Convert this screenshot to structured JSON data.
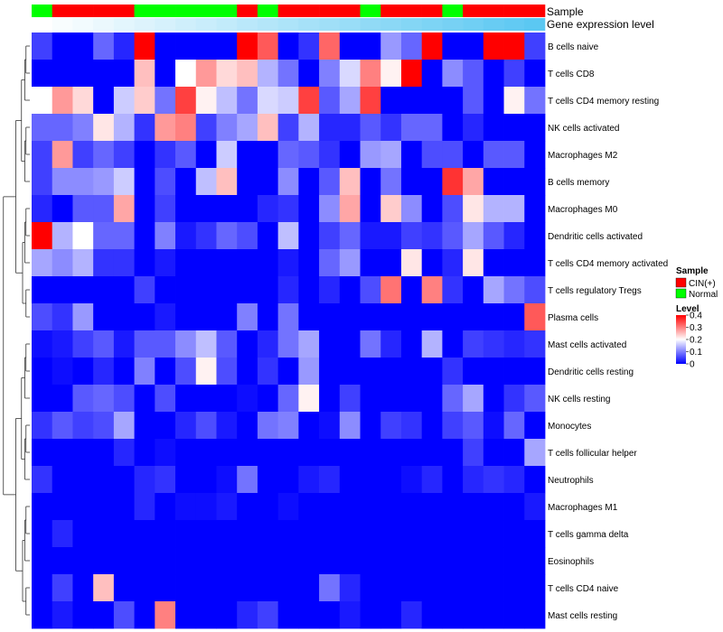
{
  "chart_data": {
    "type": "heatmap",
    "title": "",
    "annotation_tracks": [
      "Sample",
      "Gene expression level"
    ],
    "rows": [
      "B cells naive",
      "T cells CD8",
      "T cells CD4 memory resting",
      "NK cells activated",
      "Macrophages M2",
      "B cells memory",
      "Macrophages M0",
      "Dendritic cells activated",
      "T cells CD4 memory activated",
      "T cells regulatory  Tregs",
      "Plasma cells",
      "Mast cells activated",
      "Dendritic cells resting",
      "NK cells resting",
      "Monocytes",
      "T cells follicular helper",
      "Neutrophils",
      "Macrophages M1",
      "T cells gamma delta",
      "Eosinophils",
      "T cells CD4 naive",
      "Mast cells resting"
    ],
    "sample_groups": [
      "Normal",
      "CIN(+)",
      "CIN(+)",
      "CIN(+)",
      "CIN(+)",
      "Normal",
      "Normal",
      "Normal",
      "Normal",
      "Normal",
      "CIN(+)",
      "Normal",
      "CIN(+)",
      "CIN(+)",
      "CIN(+)",
      "CIN(+)",
      "Normal",
      "CIN(+)",
      "CIN(+)",
      "CIN(+)",
      "Normal",
      "CIN(+)",
      "CIN(+)",
      "CIN(+)",
      "CIN(+)"
    ],
    "gene_expression_level": [
      0.0,
      0.04,
      0.08,
      0.12,
      0.17,
      0.21,
      0.25,
      0.29,
      0.33,
      0.37,
      0.42,
      0.46,
      0.5,
      0.54,
      0.58,
      0.62,
      0.67,
      0.71,
      0.75,
      0.79,
      0.83,
      0.87,
      0.92,
      0.96,
      1.0
    ],
    "values": [
      [
        0.05,
        0.0,
        0.0,
        0.08,
        0.03,
        0.4,
        0.0,
        0.0,
        0.0,
        0.0,
        0.4,
        0.33,
        0.0,
        0.04,
        0.32,
        0.0,
        0.0,
        0.12,
        0.08,
        0.4,
        0.0,
        0.0,
        0.4,
        0.4,
        0.05
      ],
      [
        0.0,
        0.0,
        0.0,
        0.0,
        0.0,
        0.25,
        0.0,
        0.2,
        0.28,
        0.23,
        0.25,
        0.14,
        0.09,
        0.0,
        0.1,
        0.17,
        0.3,
        0.21,
        0.4,
        0.0,
        0.11,
        0.07,
        0.0,
        0.05,
        0.0
      ],
      [
        0.2,
        0.28,
        0.23,
        0.0,
        0.16,
        0.24,
        0.09,
        0.35,
        0.21,
        0.15,
        0.09,
        0.17,
        0.16,
        0.35,
        0.07,
        0.13,
        0.35,
        0.0,
        0.0,
        0.0,
        0.0,
        0.07,
        0.0,
        0.21,
        0.09
      ],
      [
        0.08,
        0.08,
        0.1,
        0.22,
        0.14,
        0.04,
        0.28,
        0.3,
        0.05,
        0.1,
        0.13,
        0.25,
        0.05,
        0.14,
        0.03,
        0.03,
        0.07,
        0.04,
        0.08,
        0.08,
        0.0,
        0.03,
        0.0,
        0.0,
        0.0
      ],
      [
        0.05,
        0.28,
        0.05,
        0.08,
        0.05,
        0.0,
        0.04,
        0.07,
        0.0,
        0.16,
        0.0,
        0.0,
        0.08,
        0.07,
        0.04,
        0.0,
        0.12,
        0.13,
        0.0,
        0.06,
        0.06,
        0.0,
        0.07,
        0.07,
        0.0
      ],
      [
        0.05,
        0.11,
        0.11,
        0.12,
        0.16,
        0.0,
        0.06,
        0.0,
        0.15,
        0.25,
        0.0,
        0.0,
        0.11,
        0.0,
        0.07,
        0.25,
        0.0,
        0.09,
        0.0,
        0.0,
        0.36,
        0.27,
        0.0,
        0.0,
        0.0
      ],
      [
        0.03,
        0.0,
        0.07,
        0.07,
        0.27,
        0.0,
        0.05,
        0.0,
        0.0,
        0.0,
        0.0,
        0.03,
        0.04,
        0.0,
        0.11,
        0.27,
        0.0,
        0.24,
        0.11,
        0.0,
        0.06,
        0.22,
        0.14,
        0.14,
        0.0
      ],
      [
        0.4,
        0.14,
        0.2,
        0.08,
        0.08,
        0.0,
        0.1,
        0.02,
        0.04,
        0.08,
        0.06,
        0.0,
        0.15,
        0.0,
        0.05,
        0.08,
        0.02,
        0.02,
        0.05,
        0.04,
        0.07,
        0.13,
        0.07,
        0.03,
        0.0
      ],
      [
        0.13,
        0.11,
        0.14,
        0.04,
        0.04,
        0.0,
        0.02,
        0.0,
        0.0,
        0.0,
        0.0,
        0.0,
        0.02,
        0.0,
        0.08,
        0.12,
        0.0,
        0.0,
        0.22,
        0.0,
        0.03,
        0.22,
        0.0,
        0.0,
        0.0
      ],
      [
        0.0,
        0.0,
        0.0,
        0.0,
        0.0,
        0.05,
        0.0,
        0.0,
        0.0,
        0.0,
        0.0,
        0.0,
        0.03,
        0.0,
        0.03,
        0.0,
        0.06,
        0.31,
        0.0,
        0.3,
        0.04,
        0.0,
        0.13,
        0.09,
        0.06
      ],
      [
        0.06,
        0.04,
        0.12,
        0.0,
        0.0,
        0.0,
        0.02,
        0.0,
        0.0,
        0.0,
        0.1,
        0.0,
        0.09,
        0.0,
        0.0,
        0.0,
        0.0,
        0.0,
        0.0,
        0.0,
        0.0,
        0.0,
        0.0,
        0.0,
        0.33
      ],
      [
        0.01,
        0.02,
        0.05,
        0.07,
        0.02,
        0.07,
        0.07,
        0.11,
        0.15,
        0.07,
        0.0,
        0.03,
        0.09,
        0.13,
        0.0,
        0.0,
        0.09,
        0.03,
        0.0,
        0.14,
        0.0,
        0.05,
        0.04,
        0.03,
        0.04
      ],
      [
        0.0,
        0.01,
        0.0,
        0.03,
        0.0,
        0.1,
        0.0,
        0.06,
        0.21,
        0.06,
        0.0,
        0.04,
        0.0,
        0.12,
        0.0,
        0.0,
        0.0,
        0.0,
        0.0,
        0.0,
        0.04,
        0.0,
        0.0,
        0.0,
        0.0
      ],
      [
        0.0,
        0.0,
        0.07,
        0.08,
        0.06,
        0.0,
        0.06,
        0.0,
        0.0,
        0.0,
        0.01,
        0.0,
        0.08,
        0.21,
        0.0,
        0.05,
        0.0,
        0.0,
        0.0,
        0.0,
        0.08,
        0.13,
        0.0,
        0.04,
        0.07
      ],
      [
        0.04,
        0.07,
        0.05,
        0.06,
        0.13,
        0.0,
        0.0,
        0.03,
        0.06,
        0.02,
        0.0,
        0.09,
        0.1,
        0.0,
        0.01,
        0.11,
        0.0,
        0.05,
        0.04,
        0.0,
        0.05,
        0.07,
        0.01,
        0.08,
        0.0
      ],
      [
        0.0,
        0.0,
        0.0,
        0.0,
        0.03,
        0.0,
        0.01,
        0.0,
        0.0,
        0.0,
        0.0,
        0.0,
        0.0,
        0.0,
        0.0,
        0.0,
        0.0,
        0.0,
        0.0,
        0.0,
        0.0,
        0.05,
        0.0,
        0.0,
        0.13
      ],
      [
        0.04,
        0.0,
        0.0,
        0.0,
        0.0,
        0.03,
        0.04,
        0.0,
        0.0,
        0.01,
        0.09,
        0.0,
        0.0,
        0.02,
        0.03,
        0.0,
        0.0,
        0.0,
        0.01,
        0.03,
        0.0,
        0.03,
        0.04,
        0.03,
        0.0
      ],
      [
        0.0,
        0.0,
        0.0,
        0.0,
        0.0,
        0.03,
        0.0,
        0.01,
        0.01,
        0.02,
        0.0,
        0.0,
        0.01,
        0.0,
        0.0,
        0.0,
        0.0,
        0.0,
        0.0,
        0.0,
        0.0,
        0.0,
        0.0,
        0.0,
        0.02
      ],
      [
        0.0,
        0.03,
        0.0,
        0.0,
        0.0,
        0.0,
        0.0,
        0.0,
        0.0,
        0.0,
        0.0,
        0.0,
        0.0,
        0.0,
        0.0,
        0.0,
        0.0,
        0.0,
        0.0,
        0.0,
        0.0,
        0.0,
        0.0,
        0.0,
        0.0
      ],
      [
        0.0,
        0.0,
        0.0,
        0.0,
        0.0,
        0.0,
        0.0,
        0.0,
        0.0,
        0.0,
        0.0,
        0.0,
        0.0,
        0.0,
        0.0,
        0.0,
        0.0,
        0.0,
        0.0,
        0.0,
        0.0,
        0.0,
        0.0,
        0.0,
        0.0
      ],
      [
        0.0,
        0.05,
        0.0,
        0.25,
        0.0,
        0.0,
        0.0,
        0.0,
        0.0,
        0.0,
        0.0,
        0.0,
        0.0,
        0.0,
        0.09,
        0.03,
        0.0,
        0.0,
        0.0,
        0.0,
        0.0,
        0.0,
        0.0,
        0.0,
        0.0
      ],
      [
        0.0,
        0.02,
        0.0,
        0.0,
        0.06,
        0.0,
        0.3,
        0.0,
        0.0,
        0.0,
        0.03,
        0.05,
        0.0,
        0.0,
        0.0,
        0.02,
        0.0,
        0.0,
        0.03,
        0.0,
        0.0,
        0.0,
        0.0,
        0.0,
        0.0
      ]
    ],
    "color_scale": {
      "min": 0,
      "max": 0.4,
      "stops": [
        [
          0,
          "#0000ff"
        ],
        [
          0.2,
          "#ffffff"
        ],
        [
          0.4,
          "#ff0000"
        ]
      ]
    },
    "legend": {
      "sample_title": "Sample",
      "sample_entries": [
        {
          "label": "CIN(+)",
          "color": "#ff0000"
        },
        {
          "label": "Normal",
          "color": "#00ff00"
        }
      ],
      "level_title": "Level",
      "level_ticks": [
        "0.4",
        "0.3",
        "0.2",
        "0.1",
        "0"
      ],
      "placement": "right"
    },
    "dendrogram": "rows"
  }
}
